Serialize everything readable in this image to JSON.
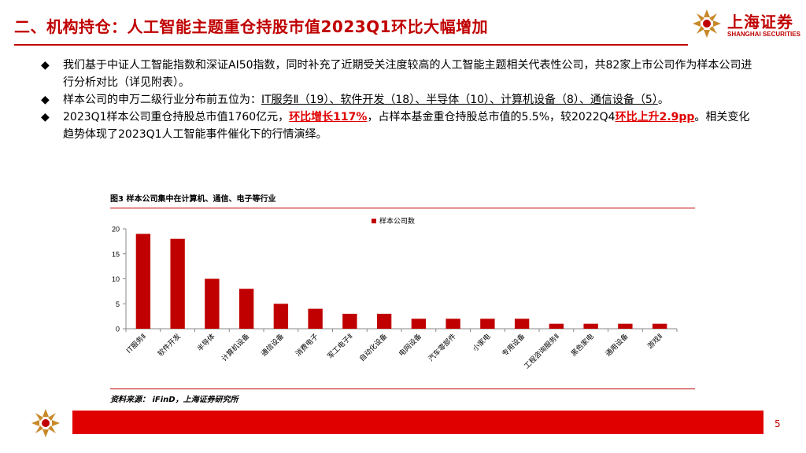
{
  "header": {
    "title": "二、机构持仓：人工智能主题重仓持股市值2023Q1环比大幅增加",
    "logo_cn": "上海证券",
    "logo_en": "SHANGHAI SECURITIES",
    "logo_icon": "shanghai-securities-logo-icon"
  },
  "bullets": {
    "marker": "◆",
    "b1": "我们基于中证人工智能指数和深证AI50指数，同时补充了近期受关注度较高的人工智能主题相关代表性公司，共82家上市公司作为样本公司进行分析对比（详见附表）。",
    "b2_a": "样本公司的申万二级行业分布前五位为：",
    "b2_b": "IT服务Ⅱ（19）、软件开发（18）、半导体（10）、计算机设备（8）、通信设备（5）",
    "b2_c": "。",
    "b3_a": "2023Q1样本公司重仓持股总市值1760亿元，",
    "b3_b": "环比增长117%",
    "b3_c": "，占样本基金重仓持股总市值的5.5%，较2022Q4",
    "b3_d": "环比上升2.9pp",
    "b3_e": "。相关变化趋势体现了2023Q1人工智能事件催化下的行情演绎。"
  },
  "figure": {
    "caption": "图3  样本公司集中在计算机、通信、电子等行业",
    "source": "资料来源：  iFinD，上海证券研究所"
  },
  "chart_data": {
    "type": "bar",
    "categories": [
      "IT服务Ⅱ",
      "软件开发",
      "半导体",
      "计算机设备",
      "通信设备",
      "消费电子",
      "军工电子Ⅱ",
      "自动化设备",
      "电网设备",
      "汽车零部件",
      "小家电",
      "专用设备",
      "工程咨询服务Ⅱ",
      "黑色家电",
      "通用设备",
      "游戏Ⅱ"
    ],
    "series": [
      {
        "name": "样本公司数",
        "values": [
          19,
          18,
          10,
          8,
          5,
          4,
          3,
          3,
          2,
          2,
          2,
          2,
          1,
          1,
          1,
          1
        ]
      }
    ],
    "yticks": [
      "0",
      "5",
      "10",
      "15",
      "20"
    ],
    "ylim": [
      0,
      20
    ],
    "grid": false,
    "legend_position": "top-center",
    "color": "#c00000"
  },
  "footer": {
    "page": "5"
  }
}
